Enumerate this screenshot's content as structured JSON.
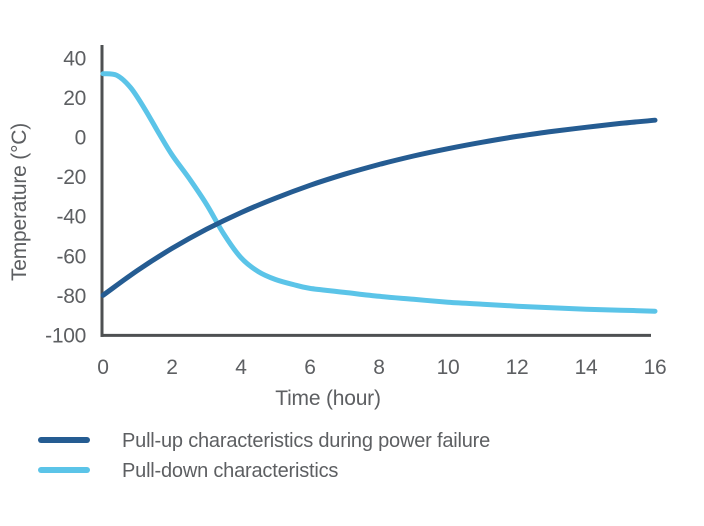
{
  "chart_data": {
    "type": "line",
    "title": "",
    "xlabel": "Time (hour)",
    "ylabel": "Temperature (°C)",
    "xlim": [
      0,
      16
    ],
    "ylim": [
      -100,
      40
    ],
    "x_ticks": [
      0,
      2,
      4,
      6,
      8,
      10,
      12,
      14,
      16
    ],
    "y_ticks": [
      40,
      20,
      0,
      -20,
      -40,
      -60,
      -80,
      -100
    ],
    "grid": false,
    "legend_position": "bottom-left",
    "series": [
      {
        "name": "Pull-down characteristics",
        "color": "#5bc4e8",
        "points": [
          [
            0,
            32
          ],
          [
            0.4,
            31.2
          ],
          [
            0.8,
            25
          ],
          [
            1.2,
            14.5
          ],
          [
            1.6,
            2.5
          ],
          [
            2,
            -9
          ],
          [
            2.5,
            -21
          ],
          [
            3,
            -34
          ],
          [
            3.5,
            -49
          ],
          [
            4,
            -61
          ],
          [
            4.5,
            -68
          ],
          [
            5,
            -72
          ],
          [
            5.5,
            -74.5
          ],
          [
            6,
            -76.5
          ],
          [
            7,
            -78.5
          ],
          [
            8,
            -80.5
          ],
          [
            9,
            -82
          ],
          [
            10,
            -83.5
          ],
          [
            11,
            -84.5
          ],
          [
            12,
            -85.5
          ],
          [
            13,
            -86.3
          ],
          [
            14,
            -87
          ],
          [
            15,
            -87.5
          ],
          [
            16,
            -88
          ]
        ]
      },
      {
        "name": "Pull-up characteristics during power failure",
        "color": "#255c92",
        "points": [
          [
            0,
            -80
          ],
          [
            1,
            -67.4
          ],
          [
            2,
            -56.3
          ],
          [
            3,
            -46.6
          ],
          [
            4,
            -38.2
          ],
          [
            5,
            -30.9
          ],
          [
            6,
            -24.4
          ],
          [
            7,
            -18.8
          ],
          [
            8,
            -13.9
          ],
          [
            9,
            -9.6
          ],
          [
            10,
            -5.9
          ],
          [
            11,
            -2.6
          ],
          [
            12,
            0.3
          ],
          [
            13,
            2.8
          ],
          [
            14,
            4.9
          ],
          [
            15,
            6.9
          ],
          [
            16,
            8.5
          ]
        ]
      }
    ],
    "legend_order": [
      1,
      0
    ]
  },
  "colors": {
    "axis": "#4e5052",
    "text": "#5d5f62",
    "background": "#ffffff"
  }
}
